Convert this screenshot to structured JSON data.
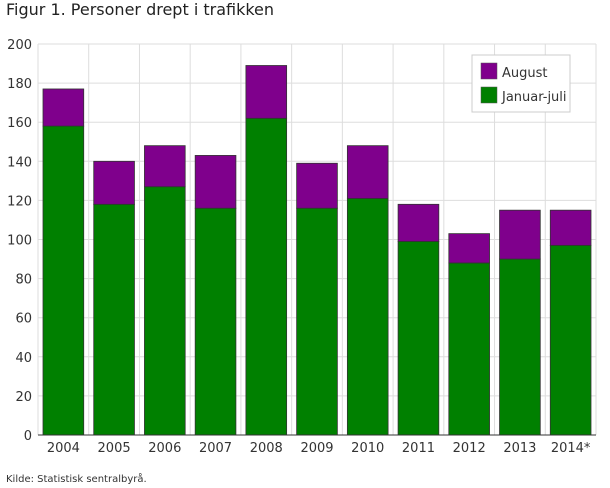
{
  "chart_data": {
    "type": "bar",
    "stacked": true,
    "title": "Figur 1. Personer drept i trafikken",
    "xlabel": "",
    "ylabel": "",
    "ylim": [
      0,
      200
    ],
    "yticks": [
      0,
      20,
      40,
      60,
      80,
      100,
      120,
      140,
      160,
      180,
      200
    ],
    "grid": true,
    "legend_position": "top-right",
    "categories": [
      "2004",
      "2005",
      "2006",
      "2007",
      "2008",
      "2009",
      "2010",
      "2011",
      "2012",
      "2013",
      "2014*"
    ],
    "series": [
      {
        "name": "Januar-juli",
        "color": "#008000",
        "values": [
          158,
          118,
          127,
          116,
          162,
          116,
          121,
          99,
          88,
          90,
          97
        ]
      },
      {
        "name": "August",
        "color": "#7f008c",
        "values": [
          19,
          22,
          21,
          27,
          27,
          23,
          27,
          19,
          15,
          25,
          18
        ]
      }
    ],
    "source": "Kilde: Statistisk sentralbyrå."
  }
}
